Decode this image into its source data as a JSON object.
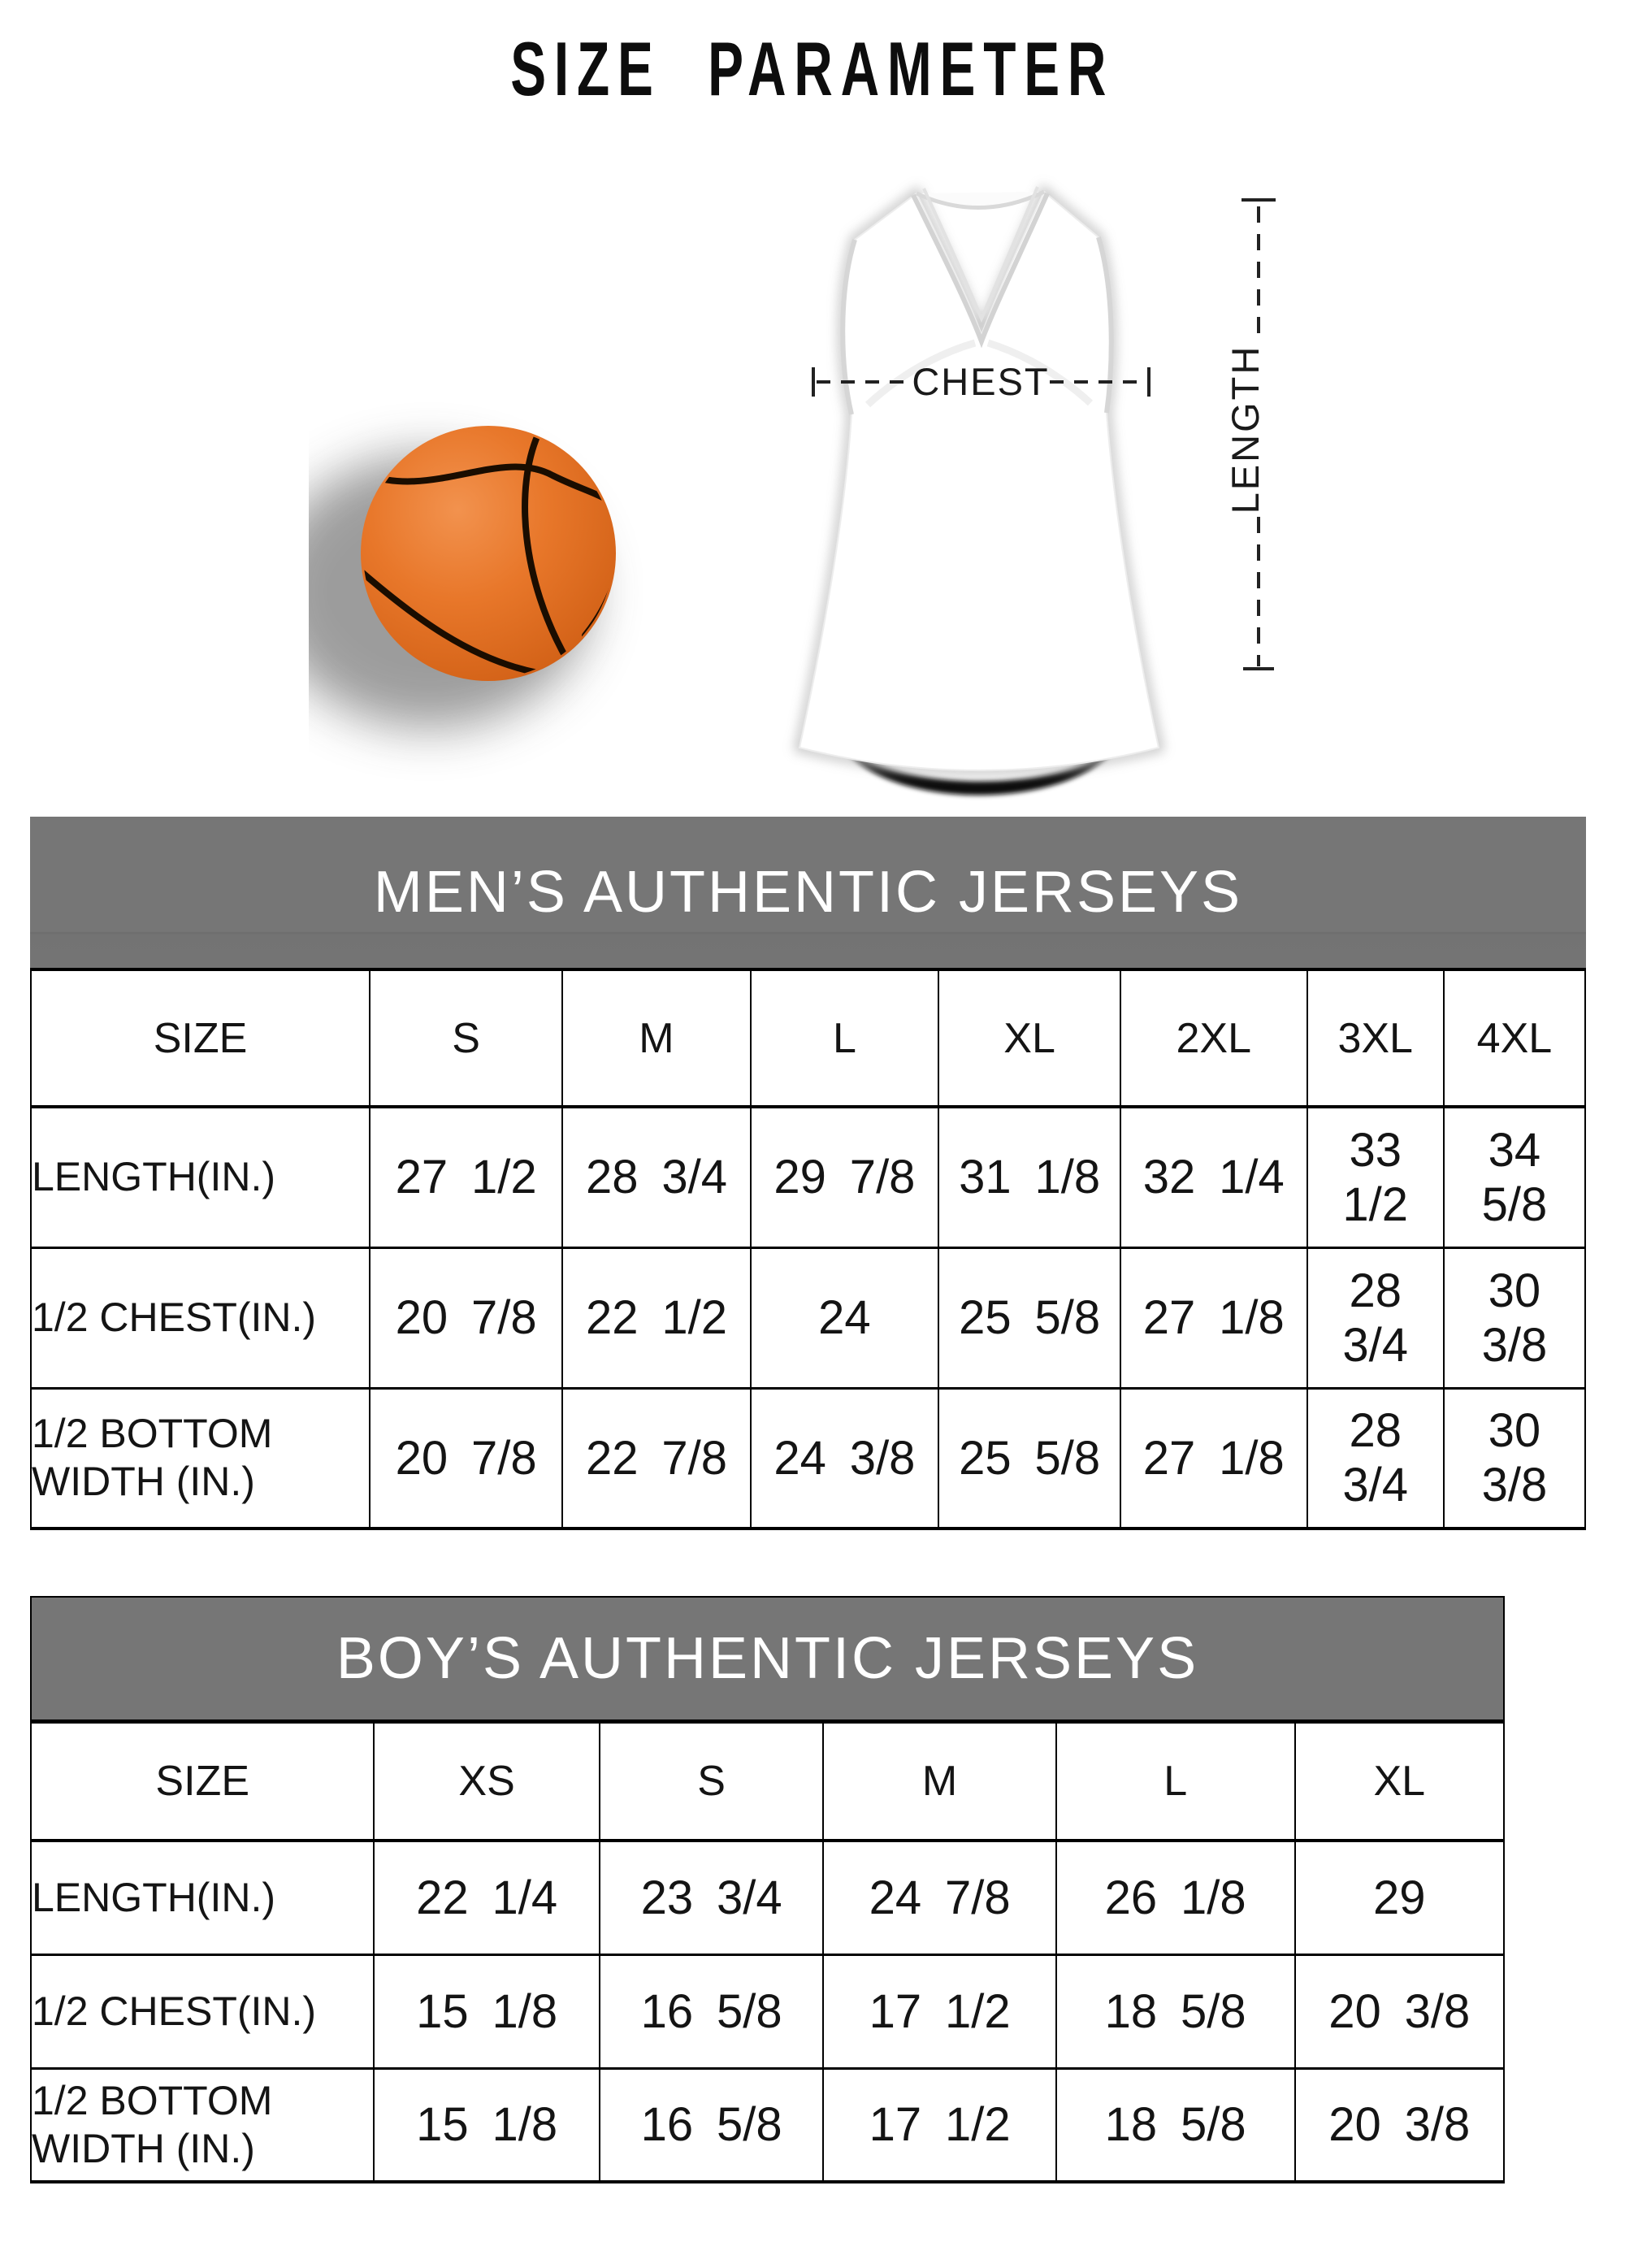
{
  "page": {
    "title": "SIZE PARAMETER"
  },
  "diagram": {
    "chest_label": "CHEST",
    "length_label": "LENGTH",
    "basketball_color": "#e8772a",
    "basketball_seam_color": "#1a0d00",
    "jersey_color": "#ffffff",
    "measure_line_color": "#222222"
  },
  "colors": {
    "band_gray": "#767676",
    "table_border": "#000000",
    "text": "#141414"
  },
  "mens_table": {
    "title": "MEN’S AUTHENTIC JERSEYS",
    "header": [
      "SIZE",
      "S",
      "M",
      "L",
      "XL",
      "2XL",
      "3XL",
      "4XL"
    ],
    "rows": [
      {
        "label": "LENGTH(IN.)",
        "values": [
          "27 1/2",
          "28 3/4",
          "29 7/8",
          "31 1/8",
          "32 1/4",
          "33 1/2",
          "34 5/8"
        ]
      },
      {
        "label": "1/2 CHEST(IN.)",
        "values": [
          "20 7/8",
          "22 1/2",
          "24",
          "25 5/8",
          "27 1/8",
          "28 3/4",
          "30 3/8"
        ]
      },
      {
        "label": "1/2 BOTTOM\n WIDTH  (IN.)",
        "values": [
          "20 7/8",
          "22 7/8",
          "24 3/8",
          "25 5/8",
          "27 1/8",
          "28 3/4",
          "30 3/8"
        ]
      }
    ]
  },
  "boys_table": {
    "title": "BOY’S AUTHENTIC JERSEYS",
    "header": [
      "SIZE",
      "XS",
      "S",
      "M",
      "L",
      "XL"
    ],
    "rows": [
      {
        "label": "LENGTH(IN.)",
        "values": [
          "22 1/4",
          "23 3/4",
          "24 7/8",
          "26 1/8",
          "29"
        ]
      },
      {
        "label": "1/2 CHEST(IN.)",
        "values": [
          "15 1/8",
          "16 5/8",
          "17 1/2",
          "18 5/8",
          "20 3/8"
        ]
      },
      {
        "label": "1/2 BOTTOM\n WIDTH  (IN.)",
        "values": [
          "15 1/8",
          "16 5/8",
          "17 1/2",
          "18 5/8",
          "20 3/8"
        ]
      }
    ]
  }
}
